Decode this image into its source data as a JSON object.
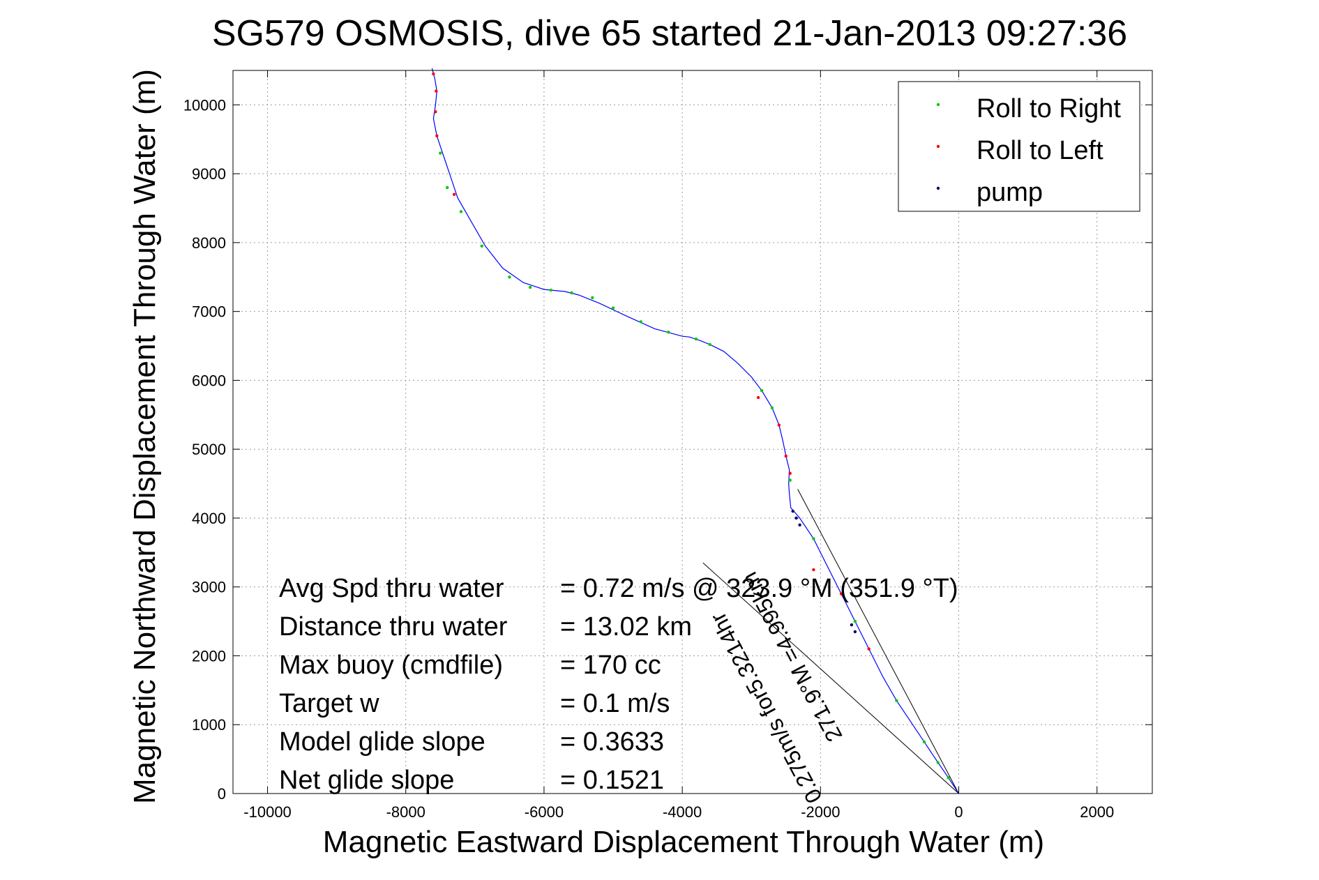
{
  "chart_data": {
    "type": "line",
    "title": "SG579 OSMOSIS, dive 65 started 21-Jan-2013 09:27:36",
    "xlabel": "Magnetic Eastward Displacement Through Water (m)",
    "ylabel": "Magnetic Northward Displacement Through Water (m)",
    "xlim": [
      -10500,
      2800
    ],
    "ylim": [
      0,
      10500
    ],
    "x_ticks": [
      -10000,
      -8000,
      -6000,
      -4000,
      -2000,
      0,
      2000
    ],
    "y_ticks": [
      0,
      1000,
      2000,
      3000,
      4000,
      5000,
      6000,
      7000,
      8000,
      9000,
      10000
    ],
    "grid": true,
    "legend_position": "top-right",
    "legend": [
      {
        "label": "Roll to Right",
        "color": "#00cc00"
      },
      {
        "label": "Roll to Left",
        "color": "#ff0000"
      },
      {
        "label": "pump",
        "color": "#000066"
      }
    ],
    "series": [
      {
        "color": "#0000ff",
        "x": [
          0,
          -150,
          -300,
          -500,
          -700,
          -900,
          -1100,
          -1300,
          -1500,
          -1700,
          -1900,
          -2100,
          -2300,
          -2430,
          -2450,
          -2460,
          -2450,
          -2500,
          -2540,
          -2600,
          -2700,
          -2850,
          -3000,
          -3200,
          -3400,
          -3600,
          -3750,
          -3900,
          -4000,
          -4400,
          -4800,
          -5200,
          -5500,
          -5700,
          -6000,
          -6300,
          -6600,
          -6850,
          -7050,
          -7250,
          -7350,
          -7450,
          -7550,
          -7600,
          -7570,
          -7550,
          -7580,
          -7620
        ],
        "y": [
          0,
          230,
          450,
          750,
          1050,
          1350,
          1700,
          2100,
          2500,
          2900,
          3300,
          3700,
          4000,
          4150,
          4350,
          4500,
          4700,
          4900,
          5100,
          5350,
          5600,
          5850,
          6050,
          6250,
          6420,
          6520,
          6580,
          6630,
          6640,
          6750,
          6930,
          7120,
          7240,
          7290,
          7320,
          7420,
          7630,
          7950,
          8300,
          8650,
          8950,
          9250,
          9550,
          9800,
          10000,
          10200,
          10380,
          10530
        ]
      }
    ],
    "markers": {
      "roll_right": {
        "x": [
          -150,
          -300,
          -500,
          -900,
          -1500,
          -2100,
          -2440,
          -2700,
          -2850,
          -3600,
          -3800,
          -4200,
          -4600,
          -5000,
          -5300,
          -5600,
          -5900,
          -6200,
          -6500,
          -6900,
          -7200,
          -7400,
          -7500
        ],
        "y": [
          230,
          450,
          750,
          1350,
          2500,
          3700,
          4550,
          5600,
          5850,
          6520,
          6600,
          6700,
          6850,
          7050,
          7200,
          7270,
          7310,
          7350,
          7500,
          7950,
          8450,
          8800,
          9300
        ]
      },
      "roll_left": {
        "x": [
          -1300,
          -1700,
          -2100,
          -2440,
          -2500,
          -2600,
          -2900,
          -7300,
          -7550,
          -7570,
          -7560,
          -7600
        ],
        "y": [
          2100,
          2900,
          3250,
          4650,
          4900,
          5350,
          5750,
          8700,
          9550,
          9900,
          10200,
          10450
        ]
      },
      "pump": {
        "x": [
          -2400,
          -2350,
          -2300,
          -1550,
          -1500
        ],
        "y": [
          4100,
          4000,
          3900,
          2450,
          2350
        ]
      }
    },
    "heading_lines": [
      {
        "x": [
          0,
          -2330
        ],
        "y": [
          0,
          4420
        ]
      },
      {
        "x": [
          0,
          -3700
        ],
        "y": [
          0,
          3350
        ]
      }
    ],
    "heading_labels": [
      {
        "text": "271.9°M =4.995km",
        "angle": 62
      },
      {
        "text": "0.275m/s for5.3214hr",
        "angle": 62
      }
    ],
    "stats": [
      {
        "name": "Avg Spd thru water",
        "value": "=  0.72 m/s @ 323.9 °M (351.9 °T)"
      },
      {
        "name": "Distance thru water",
        "value": "= 13.02 km"
      },
      {
        "name": "Max buoy (cmdfile)",
        "value": "= 170 cc"
      },
      {
        "name": "Target w",
        "value": "= 0.1 m/s"
      },
      {
        "name": "Model glide slope",
        "value": "= 0.3633"
      },
      {
        "name": "Net glide slope",
        "value": "= 0.1521"
      }
    ]
  }
}
